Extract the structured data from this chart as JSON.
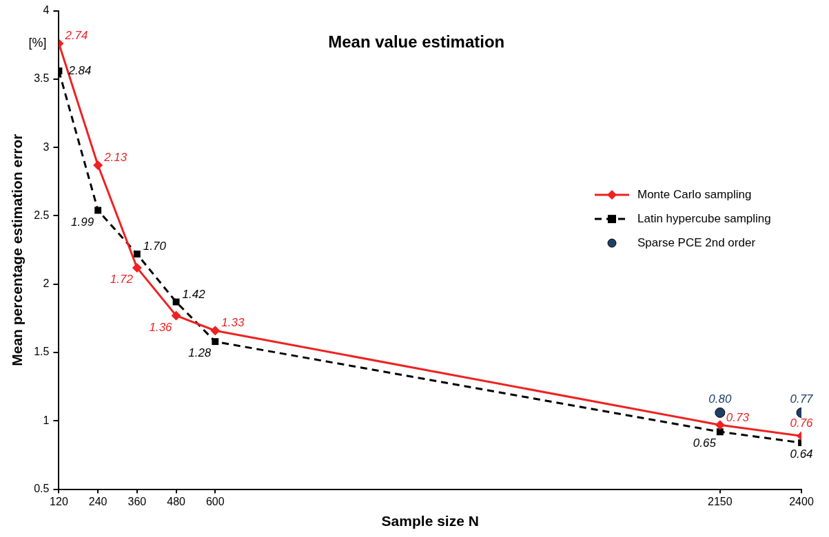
{
  "chart_data": {
    "type": "line",
    "title": "Mean value estimation",
    "xlabel": "Sample size N",
    "ylabel": "Mean percentage estimation error",
    "annotations": [
      "[%]",
      {
        "text": "2.74",
        "x": 120,
        "y": 3.76
      },
      {
        "text": "2.13",
        "x": 240,
        "y": 2.87
      },
      {
        "text": "1.72",
        "x": 360,
        "y": 2.12
      },
      {
        "text": "1.36",
        "x": 480,
        "y": 1.77
      },
      {
        "text": "1.33",
        "x": 600,
        "y": 1.66
      },
      {
        "text": "0.73",
        "x": 2150,
        "y": 0.97
      },
      {
        "text": "0.76",
        "x": 2400,
        "y": 0.89
      },
      {
        "text": "2.84",
        "x": 120,
        "y": 3.56
      },
      {
        "text": "1.99",
        "x": 240,
        "y": 2.54
      },
      {
        "text": "1.70",
        "x": 360,
        "y": 2.22
      },
      {
        "text": "1.42",
        "x": 480,
        "y": 1.87
      },
      {
        "text": "1.28",
        "x": 600,
        "y": 1.58
      },
      {
        "text": "0.65",
        "x": 2150,
        "y": 0.92
      },
      {
        "text": "0.64",
        "x": 2400,
        "y": 0.84
      },
      {
        "text": "0.80",
        "x": 2150,
        "y": 1.06
      },
      {
        "text": "0.77",
        "x": 2400,
        "y": 1.06
      }
    ],
    "x": [
      120,
      240,
      360,
      480,
      600,
      2150,
      2400
    ],
    "xlim": [
      120,
      2400
    ],
    "xticks": [
      120,
      240,
      360,
      480,
      600,
      2150,
      2400
    ],
    "ylim": [
      0.5,
      4
    ],
    "yticks": [
      0.5,
      1,
      1.5,
      2,
      2.5,
      3,
      3.5,
      4
    ],
    "grid": false,
    "legend": "right",
    "series": [
      {
        "name": "Monte Carlo sampling",
        "color": "#ee2222",
        "marker": "diamond",
        "line_style": "solid",
        "values": [
          3.76,
          2.87,
          2.12,
          1.77,
          1.66,
          0.97,
          0.89
        ]
      },
      {
        "name": "Latin hypercube sampling",
        "color": "#000000",
        "marker": "square",
        "line_style": "dashed",
        "values": [
          3.56,
          2.54,
          2.22,
          1.87,
          1.58,
          0.92,
          0.84
        ]
      },
      {
        "name": "Sparse PCE 2nd order",
        "type": "scatter",
        "color": "#1f3f66",
        "marker": "circle",
        "x": [
          2150,
          2400
        ],
        "values": [
          1.06,
          1.06
        ]
      }
    ]
  }
}
